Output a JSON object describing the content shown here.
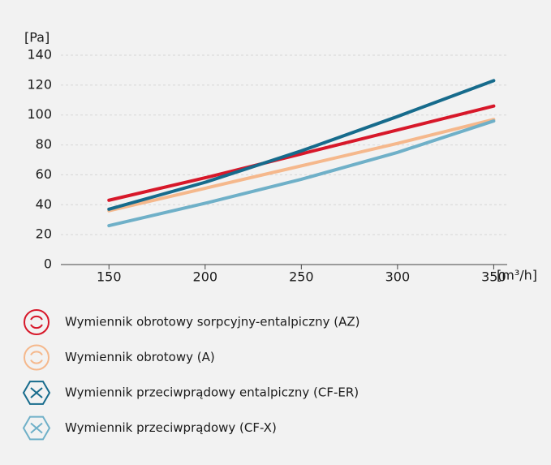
{
  "chart_data": {
    "type": "line",
    "y_label": "[Pa]",
    "x_label": "[m³/h]",
    "x": [
      150,
      200,
      250,
      300,
      350
    ],
    "xlim": [
      125,
      357
    ],
    "xticks": [
      150,
      200,
      250,
      300,
      350
    ],
    "ylim": [
      0,
      140
    ],
    "yticks": [
      0,
      20,
      40,
      60,
      80,
      100,
      120,
      140
    ],
    "grid": true,
    "series": [
      {
        "name": "Wymiennik obrotowy sorpcyjny-entalpiczny (AZ)",
        "color": "#d7182a",
        "values": [
          43,
          58,
          74,
          90,
          106
        ]
      },
      {
        "name": "Wymiennik obrotowy (A)",
        "color": "#f5b88c",
        "values": [
          36,
          51,
          66,
          81,
          97
        ]
      },
      {
        "name": "Wymiennik przeciwprądowy entalpiczny (CF-ER)",
        "color": "#166b8c",
        "values": [
          37,
          55,
          76,
          99,
          123
        ]
      },
      {
        "name": "Wymiennik przeciwprądowy (CF-X)",
        "color": "#6fb0c8",
        "values": [
          26,
          41,
          57,
          75,
          96
        ]
      }
    ]
  }
}
